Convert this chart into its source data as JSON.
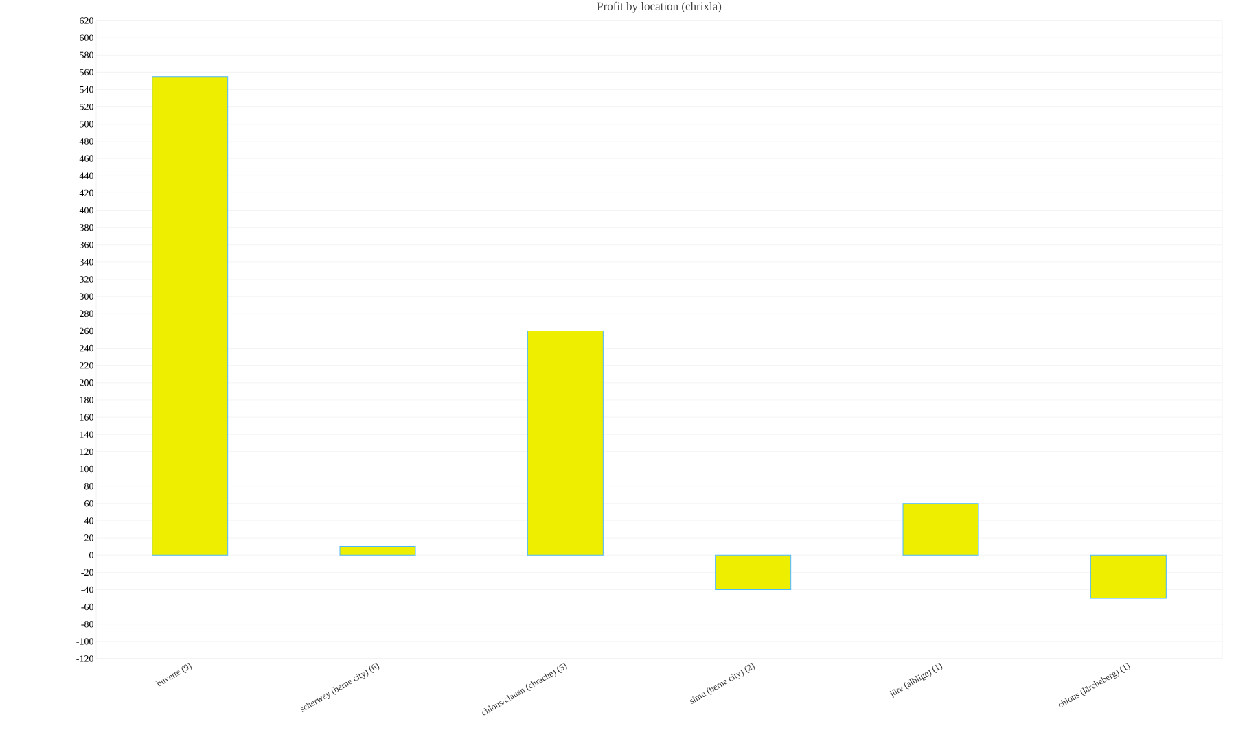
{
  "chart_data": {
    "type": "bar",
    "title": "Profit by location  (chrixla)",
    "categories": [
      "buvette (9)",
      "scherwey (berne city) (6)",
      "chlous/clausn (chrache) (5)",
      "simu (berne city) (2)",
      "jüre (alblige) (1)",
      "chlous (lärcheberg) (1)"
    ],
    "values": [
      555,
      10,
      260,
      -40,
      60,
      -50
    ],
    "color": "#eeee00",
    "ylim": [
      -120,
      620
    ],
    "yticks": [
      -120,
      -100,
      -80,
      -60,
      -40,
      -20,
      0,
      20,
      40,
      60,
      80,
      100,
      120,
      140,
      160,
      180,
      200,
      220,
      240,
      260,
      280,
      300,
      320,
      340,
      360,
      380,
      400,
      420,
      440,
      460,
      480,
      500,
      520,
      540,
      560,
      580,
      600,
      620
    ],
    "grid": "y"
  }
}
